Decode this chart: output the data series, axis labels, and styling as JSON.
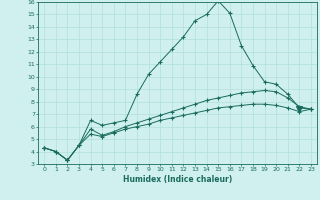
{
  "xlabel": "Humidex (Indice chaleur)",
  "x_values": [
    0,
    1,
    2,
    3,
    4,
    5,
    6,
    7,
    8,
    9,
    10,
    11,
    12,
    13,
    14,
    15,
    16,
    17,
    18,
    19,
    20,
    21,
    22,
    23
  ],
  "line1": [
    4.3,
    4.0,
    3.3,
    4.5,
    6.5,
    6.1,
    6.3,
    6.5,
    8.6,
    10.2,
    11.2,
    12.2,
    13.2,
    14.5,
    15.0,
    16.1,
    15.1,
    12.5,
    10.9,
    9.6,
    9.4,
    8.6,
    7.5,
    7.4
  ],
  "line2": [
    4.3,
    4.0,
    3.3,
    4.5,
    5.8,
    5.3,
    5.6,
    6.0,
    6.3,
    6.6,
    6.9,
    7.2,
    7.5,
    7.8,
    8.1,
    8.3,
    8.5,
    8.7,
    8.8,
    8.9,
    8.8,
    8.3,
    7.6,
    7.4
  ],
  "line3": [
    4.3,
    4.0,
    3.3,
    4.5,
    5.4,
    5.2,
    5.5,
    5.8,
    6.0,
    6.2,
    6.5,
    6.7,
    6.9,
    7.1,
    7.3,
    7.5,
    7.6,
    7.7,
    7.8,
    7.8,
    7.7,
    7.5,
    7.2,
    7.4
  ],
  "line_color": "#1a6b5e",
  "bg_color": "#cff0ee",
  "grid_color": "#b0e0de",
  "ylim": [
    3,
    16
  ],
  "xlim": [
    -0.5,
    23.5
  ],
  "yticks": [
    3,
    4,
    5,
    6,
    7,
    8,
    9,
    10,
    11,
    12,
    13,
    14,
    15,
    16
  ],
  "xticks": [
    0,
    1,
    2,
    3,
    4,
    5,
    6,
    7,
    8,
    9,
    10,
    11,
    12,
    13,
    14,
    15,
    16,
    17,
    18,
    19,
    20,
    21,
    22,
    23
  ],
  "triangle_x": 22,
  "triangle_y": 7.4
}
